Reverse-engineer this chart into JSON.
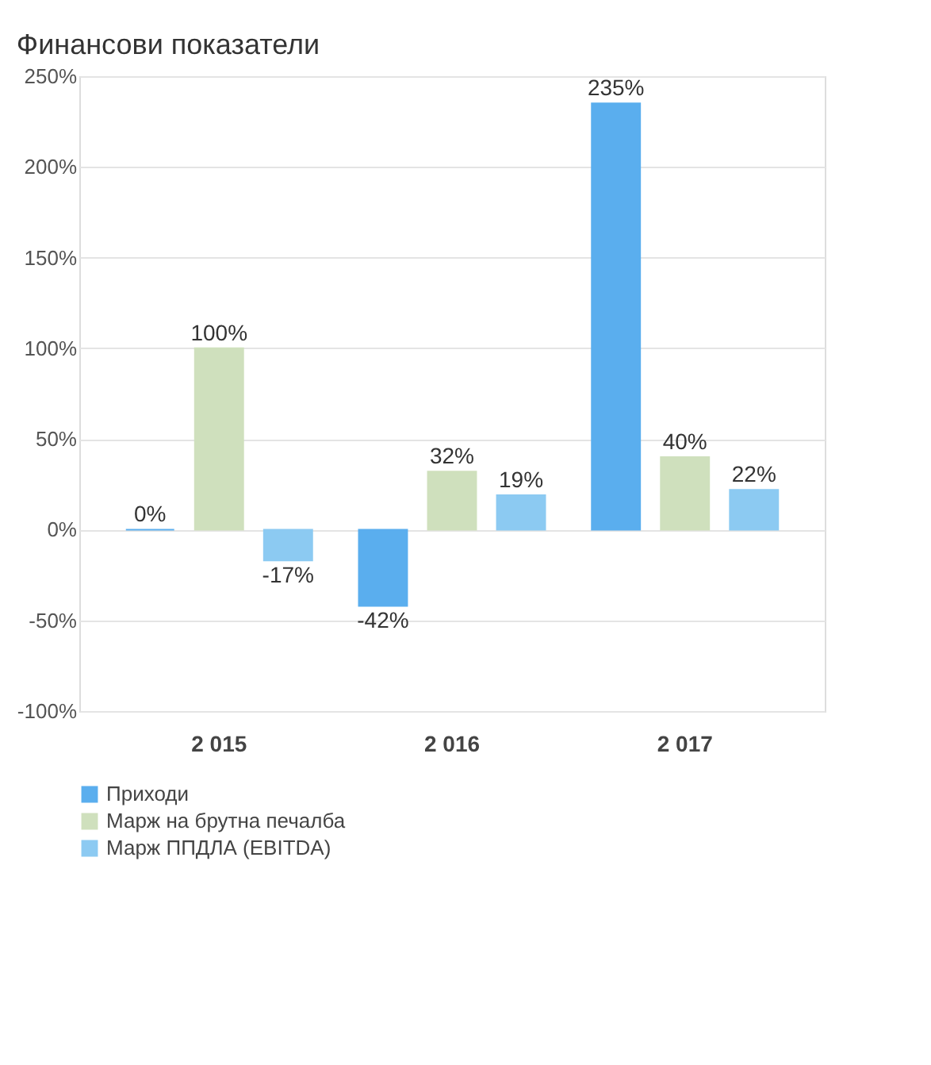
{
  "chart_data": {
    "type": "bar",
    "title": "Финансови показатели",
    "categories": [
      "2 015",
      "2 016",
      "2 017"
    ],
    "series": [
      {
        "name": "Приходи",
        "color": "#5aaeee",
        "values": [
          0,
          -42,
          235
        ],
        "value_labels": [
          "0%",
          "-42%",
          "235%"
        ]
      },
      {
        "name": "Марж на брутна печалба",
        "color": "#cfe0bd",
        "values": [
          100,
          32,
          40
        ],
        "value_labels": [
          "100%",
          "32%",
          "40%"
        ]
      },
      {
        "name": "Марж ППДЛА (EBITDA)",
        "color": "#8ccaf2",
        "values": [
          -17,
          19,
          22
        ],
        "value_labels": [
          "-17%",
          "19%",
          "22%"
        ]
      }
    ],
    "ylim": [
      -100,
      250
    ],
    "yticks": [
      {
        "value": -100,
        "label": "-100%"
      },
      {
        "value": -50,
        "label": "-50%"
      },
      {
        "value": 0,
        "label": "0%"
      },
      {
        "value": 50,
        "label": "50%"
      },
      {
        "value": 100,
        "label": "100%"
      },
      {
        "value": 150,
        "label": "150%"
      },
      {
        "value": 200,
        "label": "200%"
      },
      {
        "value": 250,
        "label": "250%"
      }
    ],
    "grid": "y",
    "legend": "bottom"
  }
}
